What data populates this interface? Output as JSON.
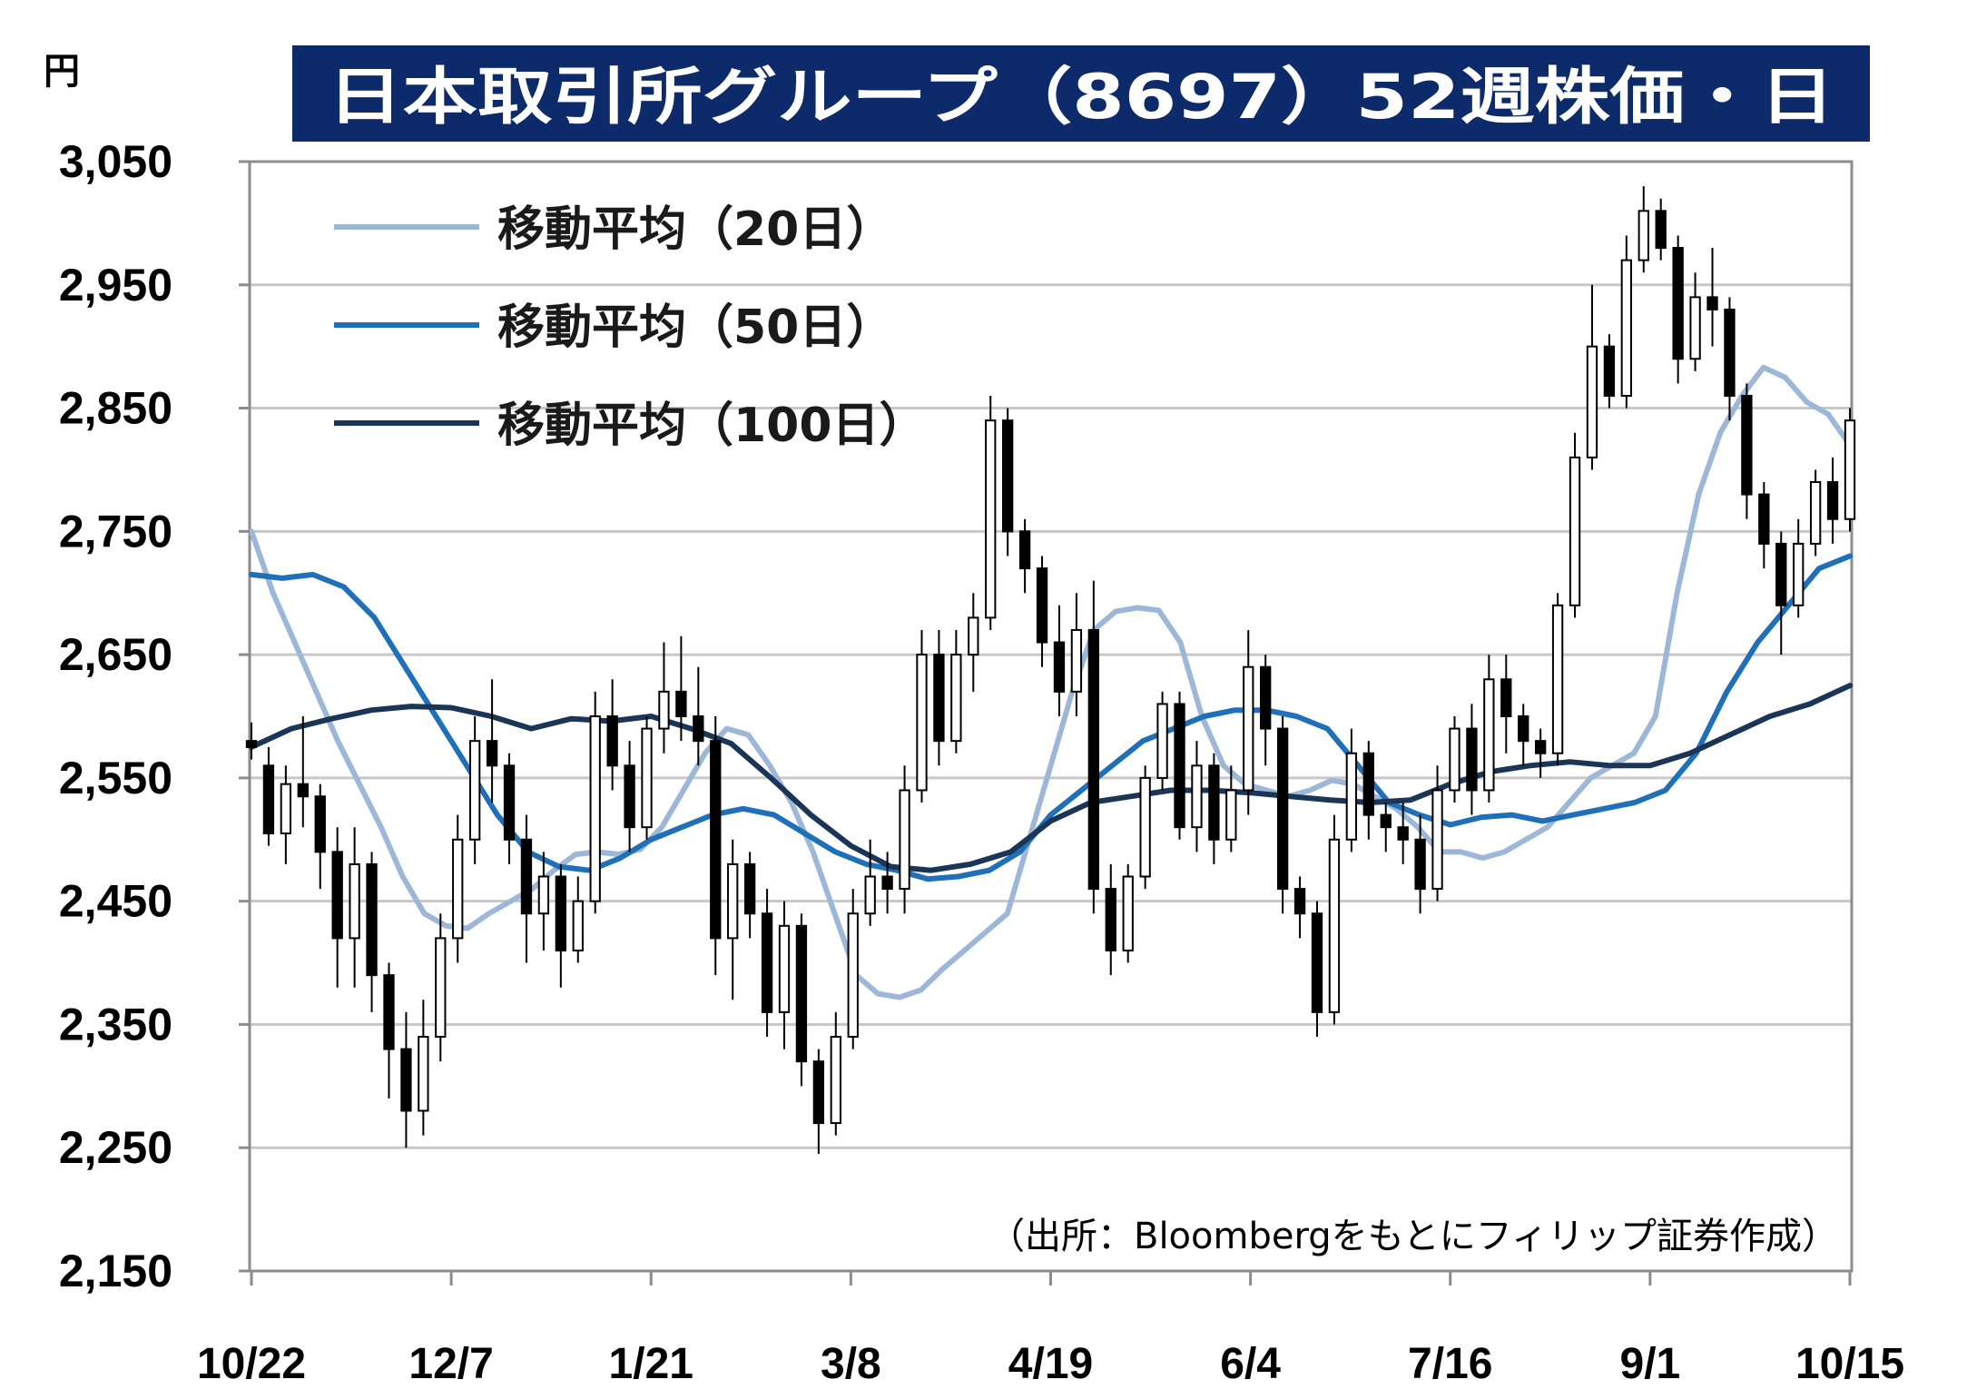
{
  "unit_label": "円",
  "title": "日本取引所グループ（8697）52週株価・日",
  "source_note": "（出所：Bloombergをもとにフィリップ証券作成）",
  "colors": {
    "title_bg": "#0d2b6b",
    "ma20": "#9db7d8",
    "ma50": "#1f6fb9",
    "ma100": "#1b3557",
    "grid": "#c8c8c8",
    "axis": "#8c8c8c",
    "candle_up_fill": "#ffffff",
    "candle_down_fill": "#000000"
  },
  "chart_data": {
    "type": "candlestick",
    "ylim": [
      2150,
      3050
    ],
    "yticks": [
      "3,050",
      "2,950",
      "2,850",
      "2,750",
      "2,650",
      "2,550",
      "2,450",
      "2,350",
      "2,250",
      "2,150"
    ],
    "x_tick_labels": [
      "10/22",
      "12/7",
      "1/21",
      "3/8",
      "4/19",
      "6/4",
      "7/16",
      "9/1",
      "10/15"
    ],
    "x_tick_index": [
      0,
      31,
      62,
      93,
      124,
      155,
      186,
      217,
      248
    ],
    "series": [
      {
        "name": "移動平均（20日）",
        "values": [
          2750,
          2700,
          2660,
          2620,
          2580,
          2545,
          2510,
          2470,
          2440,
          2430,
          2428,
          2440,
          2450,
          2460,
          2475,
          2488,
          2490,
          2488,
          2492,
          2510,
          2540,
          2570,
          2590,
          2585,
          2560,
          2530,
          2490,
          2440,
          2390,
          2375,
          2372,
          2378,
          2395,
          2410,
          2425,
          2440,
          2500,
          2560,
          2620,
          2670,
          2685,
          2688,
          2686,
          2660,
          2600,
          2560,
          2545,
          2540,
          2535,
          2540,
          2548,
          2545,
          2535,
          2525,
          2510,
          2490,
          2490,
          2485,
          2490,
          2500,
          2510,
          2530,
          2550,
          2560,
          2570,
          2600,
          2700,
          2780,
          2830,
          2860,
          2883,
          2875,
          2855,
          2845,
          2820
        ]
      },
      {
        "name": "移動平均（50日）",
        "values": [
          2715,
          2712,
          2715,
          2705,
          2680,
          2640,
          2600,
          2560,
          2520,
          2490,
          2478,
          2475,
          2485,
          2500,
          2510,
          2520,
          2525,
          2520,
          2505,
          2490,
          2480,
          2475,
          2468,
          2470,
          2475,
          2490,
          2520,
          2540,
          2560,
          2580,
          2590,
          2600,
          2605,
          2605,
          2600,
          2590,
          2560,
          2530,
          2520,
          2512,
          2518,
          2520,
          2515,
          2520,
          2525,
          2530,
          2540,
          2570,
          2620,
          2660,
          2690,
          2720,
          2730
        ]
      },
      {
        "name": "移動平均（100日）",
        "values": [
          2575,
          2590,
          2598,
          2605,
          2608,
          2607,
          2600,
          2590,
          2598,
          2596,
          2600,
          2590,
          2578,
          2550,
          2520,
          2495,
          2478,
          2475,
          2480,
          2490,
          2515,
          2530,
          2535,
          2540,
          2540,
          2538,
          2535,
          2532,
          2530,
          2532,
          2545,
          2555,
          2560,
          2563,
          2560,
          2560,
          2570,
          2585,
          2600,
          2610,
          2625
        ]
      }
    ],
    "candles": [
      [
        2580,
        2595,
        2565,
        2575
      ],
      [
        2560,
        2575,
        2495,
        2505
      ],
      [
        2505,
        2560,
        2480,
        2545
      ],
      [
        2545,
        2600,
        2510,
        2535
      ],
      [
        2535,
        2545,
        2460,
        2490
      ],
      [
        2490,
        2510,
        2380,
        2420
      ],
      [
        2420,
        2510,
        2380,
        2480
      ],
      [
        2480,
        2490,
        2360,
        2390
      ],
      [
        2390,
        2400,
        2290,
        2330
      ],
      [
        2330,
        2360,
        2250,
        2280
      ],
      [
        2280,
        2370,
        2260,
        2340
      ],
      [
        2340,
        2440,
        2320,
        2420
      ],
      [
        2420,
        2520,
        2400,
        2500
      ],
      [
        2500,
        2600,
        2480,
        2580
      ],
      [
        2580,
        2630,
        2530,
        2560
      ],
      [
        2560,
        2570,
        2480,
        2500
      ],
      [
        2500,
        2520,
        2400,
        2440
      ],
      [
        2440,
        2490,
        2410,
        2470
      ],
      [
        2470,
        2480,
        2380,
        2410
      ],
      [
        2410,
        2470,
        2400,
        2450
      ],
      [
        2450,
        2620,
        2440,
        2600
      ],
      [
        2600,
        2630,
        2540,
        2560
      ],
      [
        2560,
        2580,
        2490,
        2510
      ],
      [
        2510,
        2600,
        2500,
        2590
      ],
      [
        2590,
        2660,
        2570,
        2620
      ],
      [
        2620,
        2665,
        2580,
        2600
      ],
      [
        2600,
        2640,
        2560,
        2580
      ],
      [
        2580,
        2600,
        2390,
        2420
      ],
      [
        2420,
        2500,
        2370,
        2480
      ],
      [
        2480,
        2490,
        2420,
        2440
      ],
      [
        2440,
        2460,
        2340,
        2360
      ],
      [
        2360,
        2450,
        2330,
        2430
      ],
      [
        2430,
        2440,
        2300,
        2320
      ],
      [
        2320,
        2330,
        2245,
        2270
      ],
      [
        2270,
        2360,
        2260,
        2340
      ],
      [
        2340,
        2460,
        2330,
        2440
      ],
      [
        2440,
        2500,
        2430,
        2470
      ],
      [
        2470,
        2490,
        2440,
        2460
      ],
      [
        2460,
        2560,
        2440,
        2540
      ],
      [
        2540,
        2670,
        2530,
        2650
      ],
      [
        2650,
        2670,
        2560,
        2580
      ],
      [
        2580,
        2670,
        2570,
        2650
      ],
      [
        2650,
        2700,
        2620,
        2680
      ],
      [
        2680,
        2860,
        2670,
        2840
      ],
      [
        2840,
        2850,
        2730,
        2750
      ],
      [
        2750,
        2760,
        2700,
        2720
      ],
      [
        2720,
        2730,
        2640,
        2660
      ],
      [
        2660,
        2690,
        2600,
        2620
      ],
      [
        2620,
        2700,
        2600,
        2670
      ],
      [
        2670,
        2710,
        2440,
        2460
      ],
      [
        2460,
        2480,
        2390,
        2410
      ],
      [
        2410,
        2480,
        2400,
        2470
      ],
      [
        2470,
        2560,
        2460,
        2550
      ],
      [
        2550,
        2620,
        2540,
        2610
      ],
      [
        2610,
        2620,
        2500,
        2510
      ],
      [
        2510,
        2580,
        2490,
        2560
      ],
      [
        2560,
        2570,
        2480,
        2500
      ],
      [
        2500,
        2560,
        2490,
        2540
      ],
      [
        2540,
        2670,
        2520,
        2640
      ],
      [
        2640,
        2650,
        2560,
        2590
      ],
      [
        2590,
        2600,
        2440,
        2460
      ],
      [
        2460,
        2470,
        2420,
        2440
      ],
      [
        2440,
        2450,
        2340,
        2360
      ],
      [
        2360,
        2520,
        2350,
        2500
      ],
      [
        2500,
        2590,
        2490,
        2570
      ],
      [
        2570,
        2580,
        2500,
        2520
      ],
      [
        2520,
        2530,
        2490,
        2510
      ],
      [
        2510,
        2530,
        2480,
        2500
      ],
      [
        2500,
        2520,
        2440,
        2460
      ],
      [
        2460,
        2560,
        2450,
        2540
      ],
      [
        2540,
        2600,
        2530,
        2590
      ],
      [
        2590,
        2610,
        2520,
        2540
      ],
      [
        2540,
        2650,
        2530,
        2630
      ],
      [
        2630,
        2650,
        2570,
        2600
      ],
      [
        2600,
        2610,
        2560,
        2580
      ],
      [
        2580,
        2590,
        2550,
        2570
      ],
      [
        2570,
        2700,
        2560,
        2690
      ],
      [
        2690,
        2830,
        2680,
        2810
      ],
      [
        2810,
        2950,
        2800,
        2900
      ],
      [
        2900,
        2910,
        2850,
        2860
      ],
      [
        2860,
        2990,
        2850,
        2970
      ],
      [
        2970,
        3030,
        2960,
        3010
      ],
      [
        3010,
        3020,
        2970,
        2980
      ],
      [
        2980,
        2990,
        2870,
        2890
      ],
      [
        2890,
        2960,
        2880,
        2940
      ],
      [
        2940,
        2980,
        2900,
        2930
      ],
      [
        2930,
        2940,
        2840,
        2860
      ],
      [
        2860,
        2870,
        2760,
        2780
      ],
      [
        2780,
        2790,
        2720,
        2740
      ],
      [
        2740,
        2750,
        2650,
        2690
      ],
      [
        2690,
        2760,
        2680,
        2740
      ],
      [
        2740,
        2800,
        2730,
        2790
      ],
      [
        2790,
        2810,
        2740,
        2760
      ],
      [
        2760,
        2850,
        2750,
        2840
      ]
    ]
  }
}
